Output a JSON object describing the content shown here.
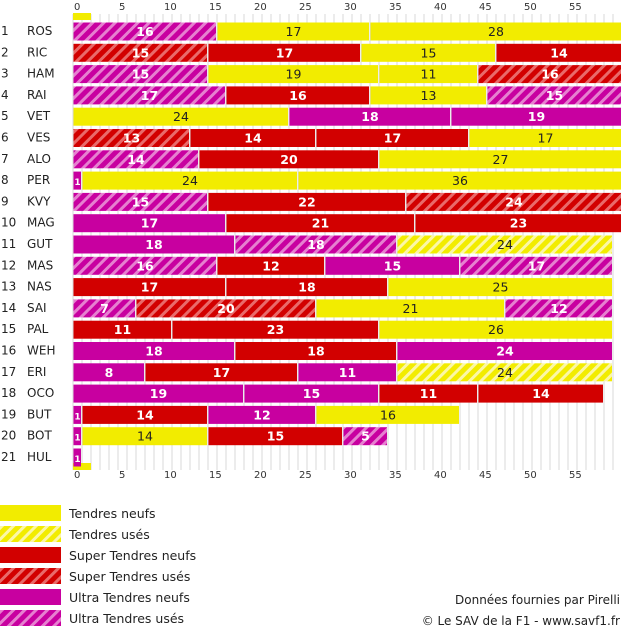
{
  "chart_data": {
    "type": "bar",
    "orientation": "horizontal",
    "stacked": true,
    "x_ticks": [
      0,
      5,
      10,
      15,
      20,
      25,
      30,
      35,
      40,
      45,
      50,
      55
    ],
    "xlim": [
      0,
      60
    ],
    "grid": true,
    "legend_position": "bottom-left",
    "compounds": {
      "TN": {
        "label": "Tendres neufs",
        "color": "#f2ec00",
        "hatch": false
      },
      "TU": {
        "label": "Tendres usés",
        "color": "#f2ec00",
        "hatch": true
      },
      "SN": {
        "label": "Super Tendres neufs",
        "color": "#d20000",
        "hatch": false
      },
      "SU": {
        "label": "Super Tendres usés",
        "color": "#d20000",
        "hatch": true
      },
      "UN": {
        "label": "Ultra Tendres neufs",
        "color": "#c800a0",
        "hatch": false
      },
      "UU": {
        "label": "Ultra Tendres usés",
        "color": "#c800a0",
        "hatch": true
      }
    },
    "legend_order": [
      "TN",
      "TU",
      "SN",
      "SU",
      "UN",
      "UU"
    ],
    "drivers": [
      {
        "pos": "1",
        "code": "ROS",
        "stints": [
          {
            "c": "UU",
            "laps": 16
          },
          {
            "c": "TN",
            "laps": 17
          },
          {
            "c": "TN",
            "laps": 28
          }
        ]
      },
      {
        "pos": "2",
        "code": "RIC",
        "stints": [
          {
            "c": "SU",
            "laps": 15
          },
          {
            "c": "SN",
            "laps": 17
          },
          {
            "c": "TN",
            "laps": 15
          },
          {
            "c": "SN",
            "laps": 14
          }
        ]
      },
      {
        "pos": "3",
        "code": "HAM",
        "stints": [
          {
            "c": "UU",
            "laps": 15
          },
          {
            "c": "TN",
            "laps": 19
          },
          {
            "c": "TN",
            "laps": 11
          },
          {
            "c": "SU",
            "laps": 16
          }
        ]
      },
      {
        "pos": "4",
        "code": "RAI",
        "stints": [
          {
            "c": "UU",
            "laps": 17
          },
          {
            "c": "SN",
            "laps": 16
          },
          {
            "c": "TN",
            "laps": 13
          },
          {
            "c": "UU",
            "laps": 15
          }
        ]
      },
      {
        "pos": "5",
        "code": "VET",
        "stints": [
          {
            "c": "TN",
            "laps": 24
          },
          {
            "c": "UN",
            "laps": 18
          },
          {
            "c": "UN",
            "laps": 19
          }
        ]
      },
      {
        "pos": "6",
        "code": "VES",
        "stints": [
          {
            "c": "SU",
            "laps": 13
          },
          {
            "c": "SN",
            "laps": 14
          },
          {
            "c": "SN",
            "laps": 17
          },
          {
            "c": "TN",
            "laps": 17
          }
        ]
      },
      {
        "pos": "7",
        "code": "ALO",
        "stints": [
          {
            "c": "UU",
            "laps": 14
          },
          {
            "c": "SN",
            "laps": 20
          },
          {
            "c": "TN",
            "laps": 27
          }
        ]
      },
      {
        "pos": "8",
        "code": "PER",
        "stints": [
          {
            "c": "UN",
            "laps": 1
          },
          {
            "c": "TN",
            "laps": 24
          },
          {
            "c": "TN",
            "laps": 36
          }
        ]
      },
      {
        "pos": "9",
        "code": "KVY",
        "stints": [
          {
            "c": "UU",
            "laps": 15
          },
          {
            "c": "SN",
            "laps": 22
          },
          {
            "c": "SU",
            "laps": 24
          }
        ]
      },
      {
        "pos": "10",
        "code": "MAG",
        "stints": [
          {
            "c": "UN",
            "laps": 17
          },
          {
            "c": "SN",
            "laps": 21
          },
          {
            "c": "SN",
            "laps": 23
          }
        ]
      },
      {
        "pos": "11",
        "code": "GUT",
        "stints": [
          {
            "c": "UN",
            "laps": 18
          },
          {
            "c": "UU",
            "laps": 18
          },
          {
            "c": "TU",
            "laps": 24
          }
        ]
      },
      {
        "pos": "12",
        "code": "MAS",
        "stints": [
          {
            "c": "UU",
            "laps": 16
          },
          {
            "c": "SN",
            "laps": 12
          },
          {
            "c": "UN",
            "laps": 15
          },
          {
            "c": "UU",
            "laps": 17
          }
        ]
      },
      {
        "pos": "13",
        "code": "NAS",
        "stints": [
          {
            "c": "SN",
            "laps": 17
          },
          {
            "c": "SN",
            "laps": 18
          },
          {
            "c": "TN",
            "laps": 25
          }
        ]
      },
      {
        "pos": "14",
        "code": "SAI",
        "stints": [
          {
            "c": "UU",
            "laps": 7
          },
          {
            "c": "SU",
            "laps": 20
          },
          {
            "c": "TN",
            "laps": 21
          },
          {
            "c": "UU",
            "laps": 12
          }
        ]
      },
      {
        "pos": "15",
        "code": "PAL",
        "stints": [
          {
            "c": "SN",
            "laps": 11
          },
          {
            "c": "SN",
            "laps": 23
          },
          {
            "c": "TN",
            "laps": 26
          }
        ]
      },
      {
        "pos": "16",
        "code": "WEH",
        "stints": [
          {
            "c": "UN",
            "laps": 18
          },
          {
            "c": "SN",
            "laps": 18
          },
          {
            "c": "UN",
            "laps": 24
          }
        ]
      },
      {
        "pos": "17",
        "code": "ERI",
        "stints": [
          {
            "c": "UN",
            "laps": 8
          },
          {
            "c": "SN",
            "laps": 17
          },
          {
            "c": "UN",
            "laps": 11
          },
          {
            "c": "TU",
            "laps": 24
          }
        ]
      },
      {
        "pos": "18",
        "code": "OCO",
        "stints": [
          {
            "c": "UN",
            "laps": 19
          },
          {
            "c": "UN",
            "laps": 15
          },
          {
            "c": "SN",
            "laps": 11
          },
          {
            "c": "SN",
            "laps": 14
          }
        ]
      },
      {
        "pos": "19",
        "code": "BUT",
        "stints": [
          {
            "c": "UN",
            "laps": 1
          },
          {
            "c": "SN",
            "laps": 14
          },
          {
            "c": "UN",
            "laps": 12
          },
          {
            "c": "TN",
            "laps": 16
          }
        ]
      },
      {
        "pos": "20",
        "code": "BOT",
        "stints": [
          {
            "c": "UN",
            "laps": 1
          },
          {
            "c": "TN",
            "laps": 14
          },
          {
            "c": "SN",
            "laps": 15
          },
          {
            "c": "UU",
            "laps": 5
          }
        ]
      },
      {
        "pos": "21",
        "code": "HUL",
        "stints": [
          {
            "c": "UN",
            "laps": 1
          }
        ]
      }
    ]
  },
  "credits": {
    "source": "Données fournies par Pirelli",
    "copyright": "© Le SAV de la F1 - www.savf1.fr"
  }
}
